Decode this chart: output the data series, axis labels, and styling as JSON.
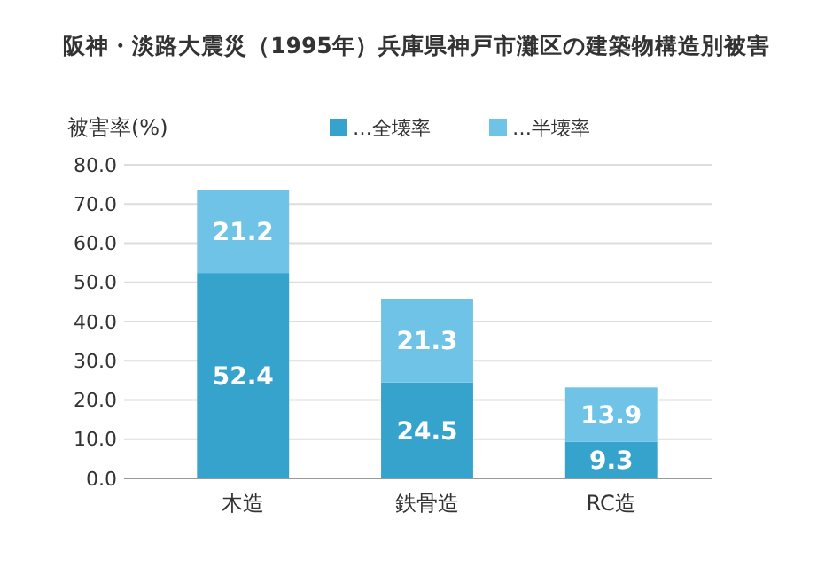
{
  "chart_data": {
    "type": "bar",
    "title": "阪神・淡路大震災（1995年）兵庫県神戸市灘区の建築物構造別被害",
    "ylabel": "被害率(%)",
    "categories": [
      "木造",
      "鉄骨造",
      "RC造"
    ],
    "stacked": true,
    "data_labels": true,
    "grid": "y",
    "legend": "top",
    "ylim": [
      0,
      80
    ],
    "yticks": [
      {
        "value": 0,
        "label": "0.0"
      },
      {
        "value": 10,
        "label": "10.0"
      },
      {
        "value": 20,
        "label": "20.0"
      },
      {
        "value": 30,
        "label": "30.0"
      },
      {
        "value": 40,
        "label": "40.0"
      },
      {
        "value": 50,
        "label": "50.0"
      },
      {
        "value": 60,
        "label": "60.0"
      },
      {
        "value": 70,
        "label": "70.0"
      },
      {
        "value": 80,
        "label": "80.0"
      }
    ],
    "series": [
      {
        "name": "…全壊率",
        "color": "#35a3cb",
        "values": [
          52.4,
          24.5,
          9.3
        ]
      },
      {
        "name": "…半壊率",
        "color": "#6ec3e6",
        "values": [
          21.2,
          21.3,
          13.9
        ]
      }
    ]
  }
}
